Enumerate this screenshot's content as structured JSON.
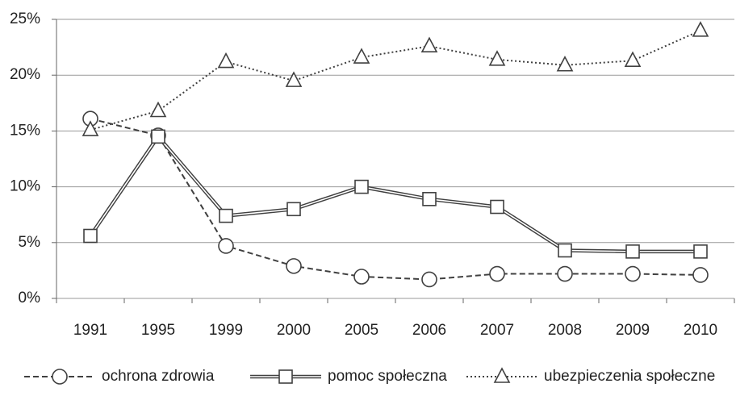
{
  "chart_data": {
    "type": "line",
    "categories": [
      "1991",
      "1995",
      "1999",
      "2000",
      "2005",
      "2006",
      "2007",
      "2008",
      "2009",
      "2010"
    ],
    "series": [
      {
        "name": "ochrona zdrowia",
        "color": "#404040",
        "line_style": "dashed",
        "marker": "circle",
        "values": [
          16.1,
          14.6,
          4.7,
          2.9,
          1.95,
          1.7,
          2.2,
          2.2,
          2.2,
          2.1
        ]
      },
      {
        "name": "pomoc społeczna",
        "color": "#404040",
        "line_style": "double",
        "marker": "square",
        "values": [
          5.6,
          14.5,
          7.4,
          8.0,
          10.0,
          8.9,
          8.2,
          4.3,
          4.2,
          4.2
        ]
      },
      {
        "name": "ubezpieczenia społeczne",
        "color": "#404040",
        "line_style": "dotted",
        "marker": "triangle",
        "values": [
          15.1,
          16.8,
          21.2,
          19.5,
          21.6,
          22.6,
          21.4,
          20.9,
          21.3,
          24.0
        ]
      }
    ],
    "ylim": [
      0,
      25
    ],
    "yticks": [
      {
        "value": 0,
        "label": "0%"
      },
      {
        "value": 5,
        "label": "5%"
      },
      {
        "value": 10,
        "label": "10%"
      },
      {
        "value": 15,
        "label": "15%"
      },
      {
        "value": 20,
        "label": "20%"
      },
      {
        "value": 25,
        "label": "25%"
      }
    ],
    "grid": true
  }
}
